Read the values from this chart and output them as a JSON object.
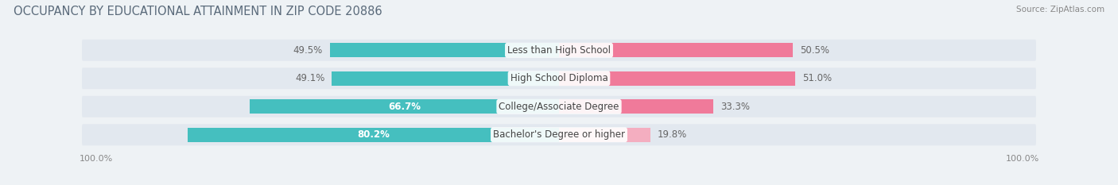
{
  "title": "OCCUPANCY BY EDUCATIONAL ATTAINMENT IN ZIP CODE 20886",
  "source": "Source: ZipAtlas.com",
  "categories": [
    "Less than High School",
    "High School Diploma",
    "College/Associate Degree",
    "Bachelor's Degree or higher"
  ],
  "owner_pct": [
    49.5,
    49.1,
    66.7,
    80.2
  ],
  "renter_pct": [
    50.5,
    51.0,
    33.3,
    19.8
  ],
  "owner_color": "#45bfbf",
  "renter_colors": [
    "#f07a9a",
    "#f07a9a",
    "#f07a9a",
    "#f4aec0"
  ],
  "background_color": "#eef2f5",
  "bar_background": "#e2e8ef",
  "title_fontsize": 10.5,
  "source_fontsize": 7.5,
  "label_fontsize": 8.5,
  "axis_label_fontsize": 8,
  "legend_fontsize": 8.5,
  "bar_height": 0.52
}
